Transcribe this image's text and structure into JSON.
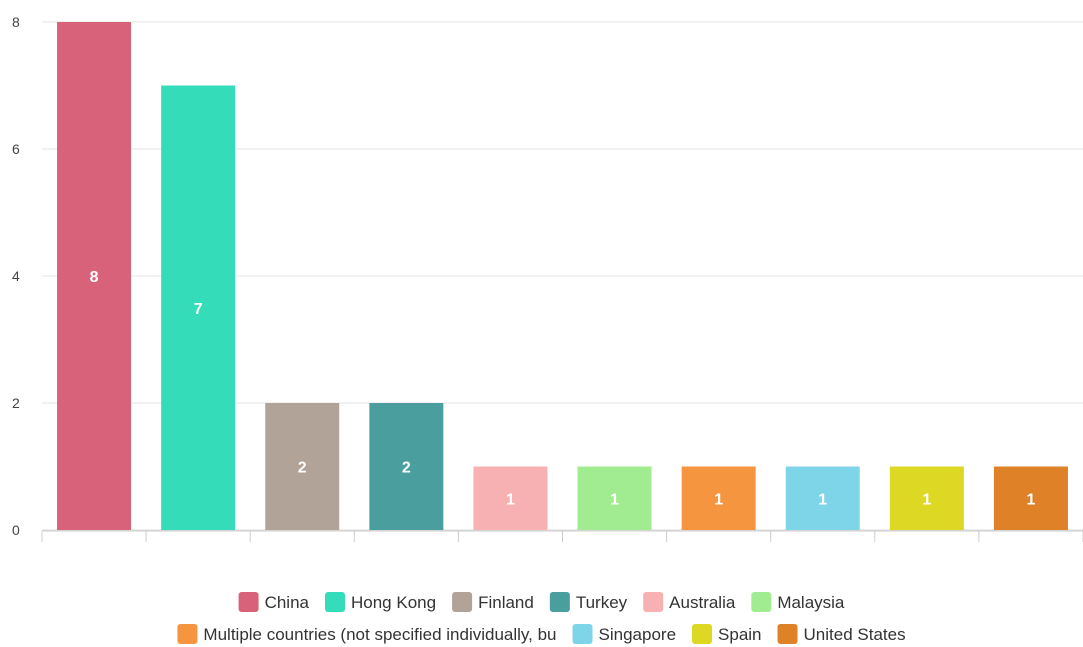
{
  "chart_data": {
    "type": "bar",
    "categories": [
      "China",
      "Hong Kong",
      "Finland",
      "Turkey",
      "Australia",
      "Malaysia",
      "Multiple countries (not specified individually, bu",
      "Singapore",
      "Spain",
      "United States"
    ],
    "values": [
      8,
      7,
      2,
      2,
      1,
      1,
      1,
      1,
      1,
      1
    ],
    "colors": [
      "#d9627b",
      "#34dcb9",
      "#b1a398",
      "#4b9e9e",
      "#f8b1b3",
      "#a1ec90",
      "#f5953f",
      "#7fd5e8",
      "#dcd823",
      "#de8127"
    ],
    "y_ticks": [
      "0",
      "2",
      "4",
      "6",
      "8"
    ],
    "ylim": [
      0,
      8
    ],
    "grid": true,
    "data_labels": true,
    "legend_position": "bottom"
  }
}
